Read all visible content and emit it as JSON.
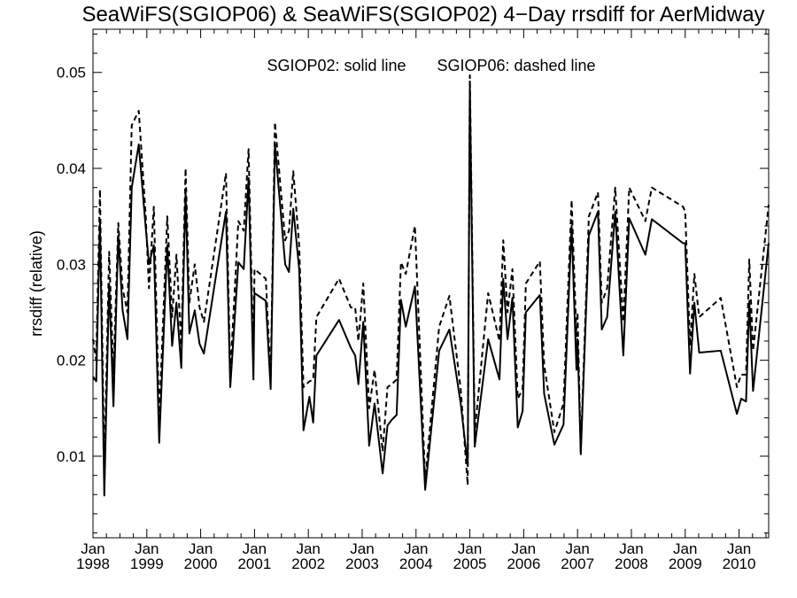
{
  "chart_data": {
    "type": "line",
    "title": "SeaWiFS(SGIOP06) & SeaWiFS(SGIOP02) 4−Day rrsdiff for AerMidway",
    "legend_text": [
      "SGIOP02: solid line",
      "SGIOP06: dashed line"
    ],
    "legend_placement": "top-center",
    "ylabel": "rrsdiff (relative)",
    "xlabel": "",
    "xlim": [
      1998.0,
      2010.55
    ],
    "ylim": [
      0.0015,
      0.0545
    ],
    "grid": false,
    "x_ticks": [
      {
        "value": 1998,
        "month": "Jan",
        "year": "1998"
      },
      {
        "value": 1999,
        "month": "Jan",
        "year": "1999"
      },
      {
        "value": 2000,
        "month": "Jan",
        "year": "2000"
      },
      {
        "value": 2001,
        "month": "Jan",
        "year": "2001"
      },
      {
        "value": 2002,
        "month": "Jan",
        "year": "2002"
      },
      {
        "value": 2003,
        "month": "Jan",
        "year": "2003"
      },
      {
        "value": 2004,
        "month": "Jan",
        "year": "2004"
      },
      {
        "value": 2005,
        "month": "Jan",
        "year": "2005"
      },
      {
        "value": 2006,
        "month": "Jan",
        "year": "2006"
      },
      {
        "value": 2007,
        "month": "Jan",
        "year": "2007"
      },
      {
        "value": 2008,
        "month": "Jan",
        "year": "2008"
      },
      {
        "value": 2009,
        "month": "Jan",
        "year": "2009"
      },
      {
        "value": 2010,
        "month": "Jan",
        "year": "2010"
      }
    ],
    "y_ticks": [
      {
        "value": 0.01,
        "label": "0.01"
      },
      {
        "value": 0.02,
        "label": "0.02"
      },
      {
        "value": 0.03,
        "label": "0.03"
      },
      {
        "value": 0.04,
        "label": "0.04"
      },
      {
        "value": 0.05,
        "label": "0.05"
      }
    ],
    "series": [
      {
        "style": "solid",
        "points": [
          [
            1998.0,
            0.0183
          ],
          [
            1998.06,
            0.0178
          ],
          [
            1998.13,
            0.0345
          ],
          [
            1998.21,
            0.0059
          ],
          [
            1998.3,
            0.028
          ],
          [
            1998.38,
            0.0152
          ],
          [
            1998.47,
            0.033
          ],
          [
            1998.55,
            0.0252
          ],
          [
            1998.64,
            0.0222
          ],
          [
            1998.72,
            0.038
          ],
          [
            1998.85,
            0.0425
          ],
          [
            1998.98,
            0.0338
          ],
          [
            1999.04,
            0.03
          ],
          [
            1999.13,
            0.032
          ],
          [
            1999.23,
            0.0114
          ],
          [
            1999.38,
            0.032
          ],
          [
            1999.47,
            0.0215
          ],
          [
            1999.55,
            0.026
          ],
          [
            1999.64,
            0.0192
          ],
          [
            1999.72,
            0.0375
          ],
          [
            1999.79,
            0.0228
          ],
          [
            1999.89,
            0.0252
          ],
          [
            1999.98,
            0.0217
          ],
          [
            2000.06,
            0.0207
          ],
          [
            2000.47,
            0.0355
          ],
          [
            2000.55,
            0.0172
          ],
          [
            2000.7,
            0.0302
          ],
          [
            2000.8,
            0.0295
          ],
          [
            2000.89,
            0.039
          ],
          [
            2000.98,
            0.018
          ],
          [
            2001.0,
            0.027
          ],
          [
            2001.21,
            0.0262
          ],
          [
            2001.3,
            0.017
          ],
          [
            2001.38,
            0.0425
          ],
          [
            2001.57,
            0.03
          ],
          [
            2001.64,
            0.0292
          ],
          [
            2001.72,
            0.0358
          ],
          [
            2001.83,
            0.0295
          ],
          [
            2001.91,
            0.0127
          ],
          [
            2002.02,
            0.0162
          ],
          [
            2002.09,
            0.0135
          ],
          [
            2002.15,
            0.0205
          ],
          [
            2002.57,
            0.0242
          ],
          [
            2002.79,
            0.0213
          ],
          [
            2002.87,
            0.0205
          ],
          [
            2002.93,
            0.0175
          ],
          [
            2003.02,
            0.024
          ],
          [
            2003.13,
            0.0111
          ],
          [
            2003.23,
            0.0155
          ],
          [
            2003.38,
            0.0082
          ],
          [
            2003.47,
            0.0132
          ],
          [
            2003.55,
            0.0138
          ],
          [
            2003.64,
            0.0143
          ],
          [
            2003.72,
            0.0263
          ],
          [
            2003.81,
            0.0235
          ],
          [
            2003.98,
            0.0277
          ],
          [
            2004.17,
            0.0065
          ],
          [
            2004.43,
            0.021
          ],
          [
            2004.62,
            0.0232
          ],
          [
            2004.83,
            0.0155
          ],
          [
            2004.96,
            0.009
          ],
          [
            2005.0,
            0.0485
          ],
          [
            2005.09,
            0.011
          ],
          [
            2005.34,
            0.0222
          ],
          [
            2005.55,
            0.018
          ],
          [
            2005.62,
            0.0285
          ],
          [
            2005.7,
            0.0222
          ],
          [
            2005.79,
            0.0265
          ],
          [
            2005.89,
            0.013
          ],
          [
            2005.98,
            0.0147
          ],
          [
            2006.04,
            0.025
          ],
          [
            2006.3,
            0.0268
          ],
          [
            2006.38,
            0.0165
          ],
          [
            2006.57,
            0.0112
          ],
          [
            2006.74,
            0.0133
          ],
          [
            2006.89,
            0.034
          ],
          [
            2006.98,
            0.019
          ],
          [
            2007.0,
            0.0222
          ],
          [
            2007.06,
            0.0102
          ],
          [
            2007.21,
            0.033
          ],
          [
            2007.38,
            0.0355
          ],
          [
            2007.45,
            0.0232
          ],
          [
            2007.55,
            0.0245
          ],
          [
            2007.7,
            0.0355
          ],
          [
            2007.85,
            0.0205
          ],
          [
            2007.96,
            0.0348
          ],
          [
            2008.26,
            0.031
          ],
          [
            2008.38,
            0.0347
          ],
          [
            2008.96,
            0.0322
          ],
          [
            2009.0,
            0.0322
          ],
          [
            2009.09,
            0.0186
          ],
          [
            2009.17,
            0.026
          ],
          [
            2009.26,
            0.0208
          ],
          [
            2009.66,
            0.021
          ],
          [
            2009.96,
            0.0144
          ],
          [
            2010.04,
            0.016
          ],
          [
            2010.13,
            0.0157
          ],
          [
            2010.19,
            0.0262
          ],
          [
            2010.26,
            0.0168
          ],
          [
            2010.55,
            0.0322
          ]
        ]
      },
      {
        "style": "dashed",
        "points": [
          [
            1998.0,
            0.0222
          ],
          [
            1998.06,
            0.02
          ],
          [
            1998.13,
            0.0378
          ],
          [
            1998.21,
            0.0085
          ],
          [
            1998.3,
            0.0313
          ],
          [
            1998.38,
            0.0185
          ],
          [
            1998.47,
            0.0343
          ],
          [
            1998.55,
            0.0275
          ],
          [
            1998.64,
            0.025
          ],
          [
            1998.72,
            0.0445
          ],
          [
            1998.85,
            0.046
          ],
          [
            1998.98,
            0.035
          ],
          [
            1999.04,
            0.0275
          ],
          [
            1999.13,
            0.036
          ],
          [
            1999.23,
            0.014
          ],
          [
            1999.38,
            0.035
          ],
          [
            1999.47,
            0.0245
          ],
          [
            1999.55,
            0.031
          ],
          [
            1999.64,
            0.0215
          ],
          [
            1999.72,
            0.04
          ],
          [
            1999.79,
            0.026
          ],
          [
            1999.89,
            0.03
          ],
          [
            1999.98,
            0.0255
          ],
          [
            2000.06,
            0.024
          ],
          [
            2000.47,
            0.0395
          ],
          [
            2000.55,
            0.0185
          ],
          [
            2000.7,
            0.0345
          ],
          [
            2000.8,
            0.0335
          ],
          [
            2000.89,
            0.042
          ],
          [
            2000.98,
            0.02
          ],
          [
            2001.0,
            0.0295
          ],
          [
            2001.21,
            0.0285
          ],
          [
            2001.3,
            0.018
          ],
          [
            2001.38,
            0.0448
          ],
          [
            2001.57,
            0.0325
          ],
          [
            2001.64,
            0.0335
          ],
          [
            2001.72,
            0.0397
          ],
          [
            2001.83,
            0.032
          ],
          [
            2001.91,
            0.0172
          ],
          [
            2002.02,
            0.0178
          ],
          [
            2002.09,
            0.018
          ],
          [
            2002.15,
            0.0245
          ],
          [
            2002.57,
            0.0285
          ],
          [
            2002.79,
            0.0255
          ],
          [
            2002.87,
            0.0255
          ],
          [
            2002.93,
            0.022
          ],
          [
            2003.02,
            0.028
          ],
          [
            2003.13,
            0.015
          ],
          [
            2003.23,
            0.019
          ],
          [
            2003.38,
            0.0105
          ],
          [
            2003.47,
            0.0172
          ],
          [
            2003.55,
            0.0175
          ],
          [
            2003.64,
            0.018
          ],
          [
            2003.72,
            0.0302
          ],
          [
            2003.81,
            0.029
          ],
          [
            2003.98,
            0.034
          ],
          [
            2004.17,
            0.0075
          ],
          [
            2004.43,
            0.0235
          ],
          [
            2004.62,
            0.0267
          ],
          [
            2004.83,
            0.017
          ],
          [
            2004.96,
            0.007
          ],
          [
            2005.0,
            0.0497
          ],
          [
            2005.09,
            0.0125
          ],
          [
            2005.34,
            0.027
          ],
          [
            2005.55,
            0.022
          ],
          [
            2005.62,
            0.0325
          ],
          [
            2005.7,
            0.025
          ],
          [
            2005.79,
            0.0295
          ],
          [
            2005.89,
            0.016
          ],
          [
            2005.98,
            0.017
          ],
          [
            2006.04,
            0.028
          ],
          [
            2006.3,
            0.0303
          ],
          [
            2006.38,
            0.0195
          ],
          [
            2006.57,
            0.0125
          ],
          [
            2006.74,
            0.0155
          ],
          [
            2006.89,
            0.0367
          ],
          [
            2006.98,
            0.0225
          ],
          [
            2007.0,
            0.025
          ],
          [
            2007.06,
            0.0105
          ],
          [
            2007.21,
            0.035
          ],
          [
            2007.38,
            0.0375
          ],
          [
            2007.45,
            0.026
          ],
          [
            2007.55,
            0.0275
          ],
          [
            2007.7,
            0.038
          ],
          [
            2007.85,
            0.024
          ],
          [
            2007.96,
            0.038
          ],
          [
            2008.26,
            0.0345
          ],
          [
            2008.38,
            0.038
          ],
          [
            2008.96,
            0.036
          ],
          [
            2009.0,
            0.0355
          ],
          [
            2009.09,
            0.0215
          ],
          [
            2009.17,
            0.029
          ],
          [
            2009.26,
            0.0245
          ],
          [
            2009.66,
            0.0265
          ],
          [
            2009.96,
            0.0172
          ],
          [
            2010.04,
            0.0185
          ],
          [
            2010.13,
            0.0185
          ],
          [
            2010.19,
            0.0305
          ],
          [
            2010.26,
            0.021
          ],
          [
            2010.55,
            0.0362
          ]
        ]
      }
    ]
  }
}
